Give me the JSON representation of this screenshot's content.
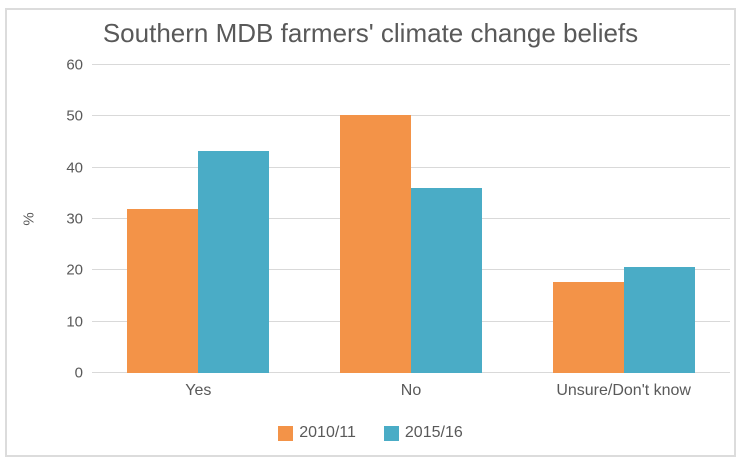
{
  "chart_data": {
    "type": "bar",
    "title": "Southern MDB farmers' climate change beliefs",
    "categories": [
      "Yes",
      "No",
      "Unsure/Don't know"
    ],
    "series": [
      {
        "name": "2010/11",
        "color": "#f39348",
        "values": [
          32,
          50.3,
          17.8
        ]
      },
      {
        "name": "2015/16",
        "color": "#4aacc6",
        "values": [
          43.2,
          36,
          20.6
        ]
      }
    ],
    "xlabel": "",
    "ylabel": "%",
    "ylim": [
      0,
      60
    ],
    "yticks": [
      0,
      10,
      20,
      30,
      40,
      50,
      60
    ],
    "grid": true,
    "legend_position": "bottom",
    "colors": {
      "text": "#595959",
      "gridline": "#d9d9d9",
      "frame_border": "#dcdcdc",
      "background": "#ffffff"
    }
  }
}
